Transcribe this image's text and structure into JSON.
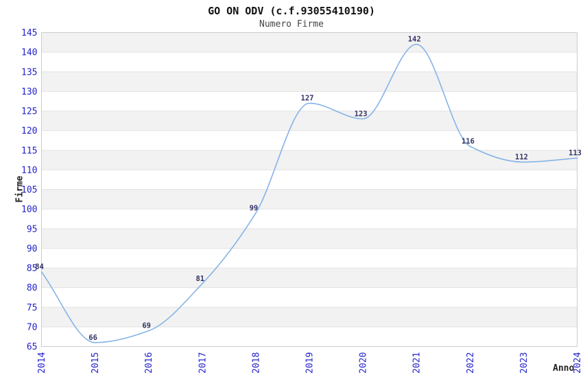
{
  "chart_data": {
    "type": "line",
    "title": "GO ON ODV (c.f.93055410190)",
    "subtitle": "Numero Firme",
    "xlabel": "Anno",
    "ylabel": "Firme",
    "x": [
      2014,
      2015,
      2016,
      2017,
      2018,
      2019,
      2020,
      2021,
      2022,
      2023,
      2024
    ],
    "series": [
      {
        "name": "Numero Firme",
        "values": [
          84,
          66,
          69,
          81,
          99,
          127,
          123,
          142,
          116,
          112,
          113
        ]
      }
    ],
    "ylim": [
      65,
      145
    ],
    "ytick_step": 5,
    "grid": "horizontal-bands-alternating",
    "legend": "none",
    "line_style": "smooth-monotone",
    "markers": "none",
    "colors": {
      "line": "#85b3e8",
      "tick_label": "#2222cc",
      "data_label": "#333366",
      "band": "#f2f2f2",
      "gridline": "#e3e3e3",
      "plot_border": "#cccccc",
      "title": "#111111",
      "subtitle": "#444444",
      "axis_title": "#222222",
      "background": "#ffffff"
    }
  }
}
